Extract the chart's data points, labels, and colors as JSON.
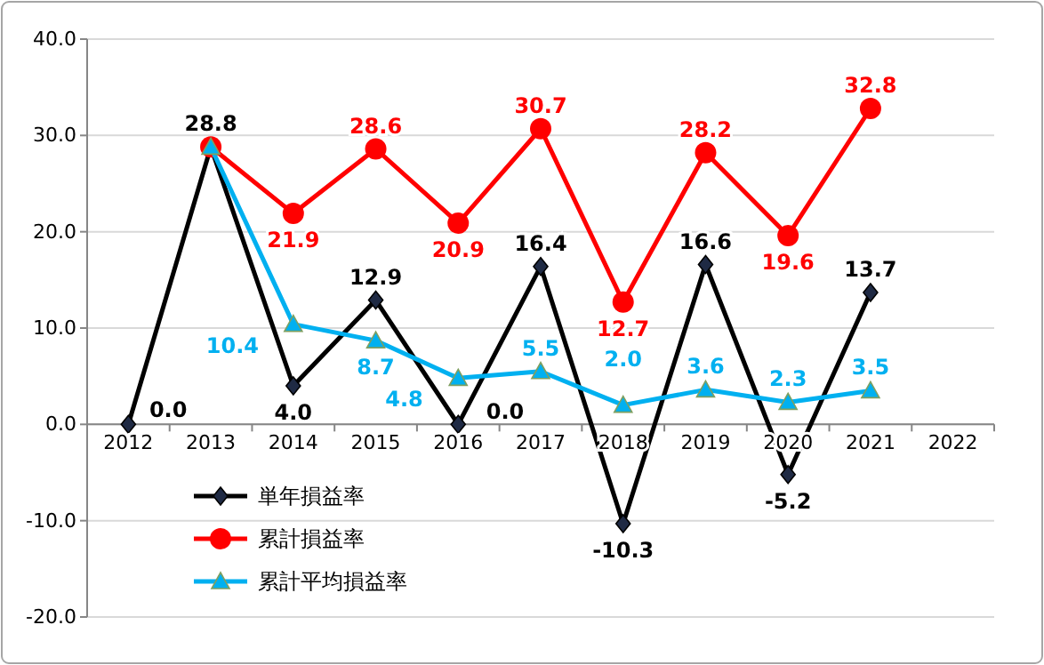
{
  "chart_data": {
    "type": "line",
    "categories": [
      "2012",
      "2013",
      "2014",
      "2015",
      "2016",
      "2017",
      "2018",
      "2019",
      "2020",
      "2021",
      "2022"
    ],
    "series": [
      {
        "name": "単年損益率",
        "color": "#000000",
        "marker": "diamond",
        "values": [
          0.0,
          28.8,
          4.0,
          12.9,
          0.0,
          16.4,
          -10.3,
          16.6,
          -5.2,
          13.7,
          null
        ],
        "value_labels": [
          "0.0",
          "28.8",
          "4.0",
          "12.9",
          "0.0",
          "16.4",
          "-10.3",
          "16.6",
          "-5.2",
          "13.7",
          null
        ]
      },
      {
        "name": "累計損益率",
        "color": "#ff0000",
        "marker": "circle",
        "values": [
          null,
          28.8,
          21.9,
          28.6,
          20.9,
          30.7,
          12.7,
          28.2,
          19.6,
          32.8,
          null
        ],
        "value_labels": [
          null,
          null,
          "21.9",
          "28.6",
          "20.9",
          "30.7",
          "12.7",
          "28.2",
          "19.6",
          "32.8",
          null
        ]
      },
      {
        "name": "累計平均損益率",
        "color": "#00b0f0",
        "marker": "triangle",
        "values": [
          null,
          28.8,
          10.4,
          8.7,
          4.8,
          5.5,
          2.0,
          3.6,
          2.3,
          3.5,
          null
        ],
        "value_labels": [
          null,
          null,
          "10.4",
          "8.7",
          "4.8",
          "5.5",
          "2.0",
          "3.6",
          "2.3",
          "3.5",
          null
        ]
      }
    ],
    "ylim": [
      -20,
      40
    ],
    "yticks": [
      {
        "value": -20,
        "label": "-20.0"
      },
      {
        "value": -10,
        "label": "-10.0"
      },
      {
        "value": 0,
        "label": "0.0"
      },
      {
        "value": 10,
        "label": "10.0"
      },
      {
        "value": 20,
        "label": "20.0"
      },
      {
        "value": 30,
        "label": "30.0"
      },
      {
        "value": 40,
        "label": "40.0"
      }
    ],
    "grid": "y",
    "legend": "bottom left",
    "line_style": "solid"
  }
}
